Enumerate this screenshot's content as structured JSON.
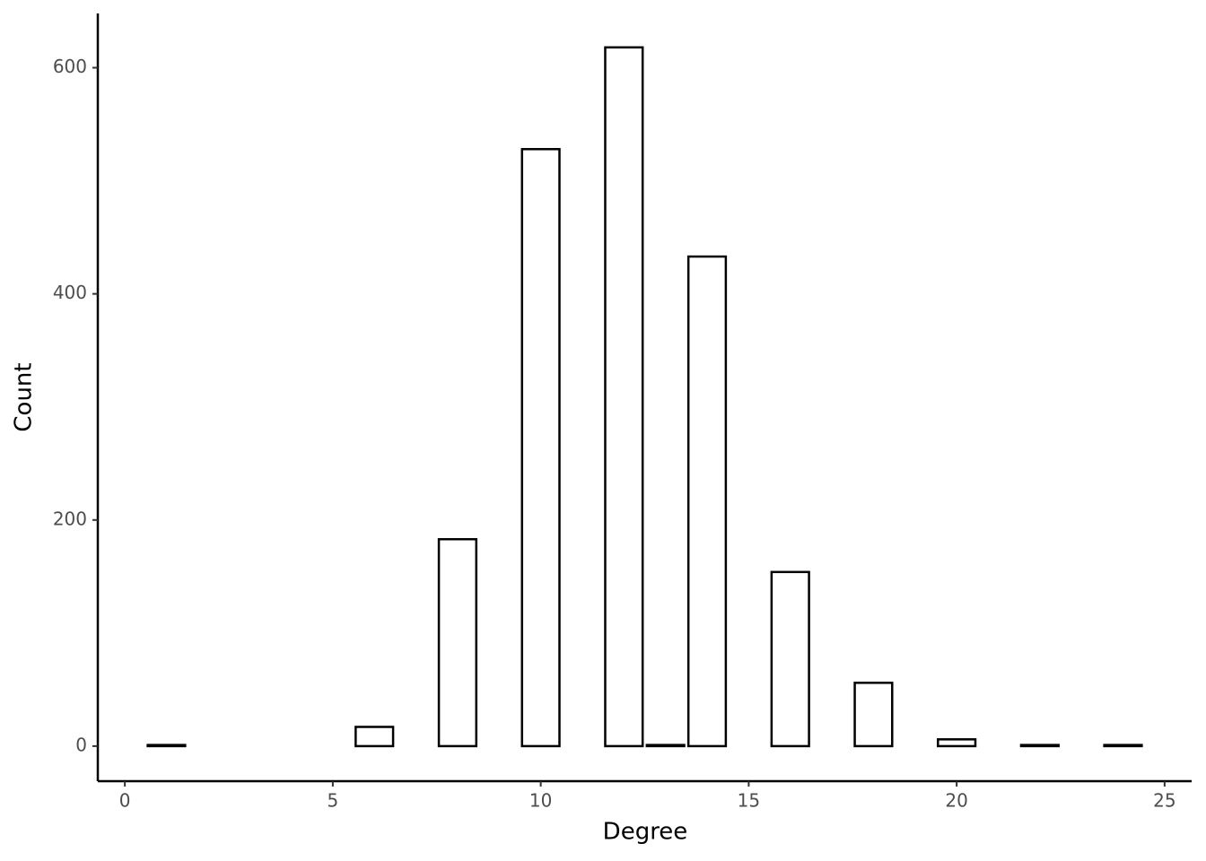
{
  "chart_data": {
    "type": "bar",
    "x": [
      1,
      6,
      8,
      10,
      12,
      13,
      14,
      16,
      18,
      20,
      22,
      24
    ],
    "values": [
      1,
      17,
      183,
      528,
      618,
      1,
      433,
      154,
      56,
      6,
      1,
      1
    ],
    "xlabel": "Degree",
    "ylabel": "Count",
    "xlim": [
      -0.65,
      25.65
    ],
    "ylim": [
      -31,
      648
    ],
    "xticks": [
      0,
      5,
      10,
      15,
      20,
      25
    ],
    "yticks": [
      0,
      200,
      400,
      600
    ],
    "color": "#ffffff",
    "edgecolor": "#000000",
    "grid": false
  }
}
